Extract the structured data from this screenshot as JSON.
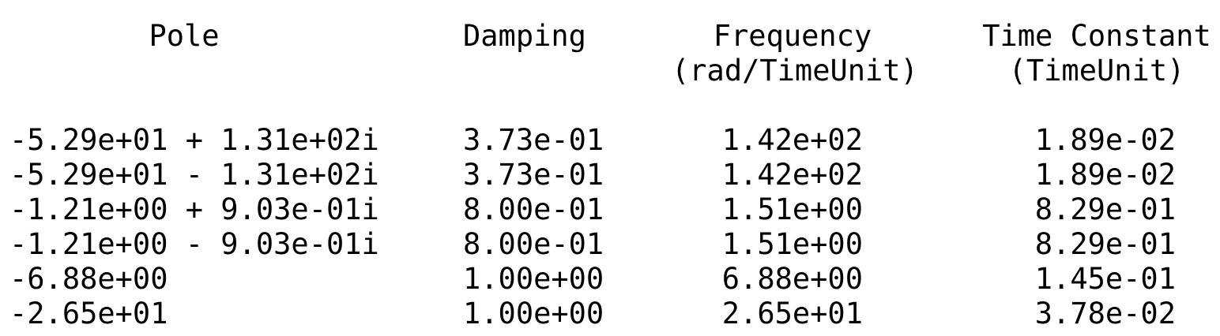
{
  "headers": {
    "pole": "Pole",
    "damping": "Damping",
    "frequency_line1": "Frequency",
    "frequency_line2": "(rad/TimeUnit)",
    "time_constant_line1": "Time Constant",
    "time_constant_line2": "(TimeUnit)"
  },
  "rows": [
    {
      "pole": "-5.29e+01 + 1.31e+02i",
      "damping": "3.73e-01",
      "frequency": "1.42e+02",
      "time_constant": "1.89e-02"
    },
    {
      "pole": "-5.29e+01 - 1.31e+02i",
      "damping": "3.73e-01",
      "frequency": "1.42e+02",
      "time_constant": "1.89e-02"
    },
    {
      "pole": "-1.21e+00 + 9.03e-01i",
      "damping": "8.00e-01",
      "frequency": "1.51e+00",
      "time_constant": "8.29e-01"
    },
    {
      "pole": "-1.21e+00 - 9.03e-01i",
      "damping": "8.00e-01",
      "frequency": "1.51e+00",
      "time_constant": "8.29e-01"
    },
    {
      "pole": "-6.88e+00",
      "damping": "1.00e+00",
      "frequency": "6.88e+00",
      "time_constant": "1.45e-01"
    },
    {
      "pole": "-2.65e+01",
      "damping": "1.00e+00",
      "frequency": "2.65e+01",
      "time_constant": "3.78e-02"
    }
  ]
}
